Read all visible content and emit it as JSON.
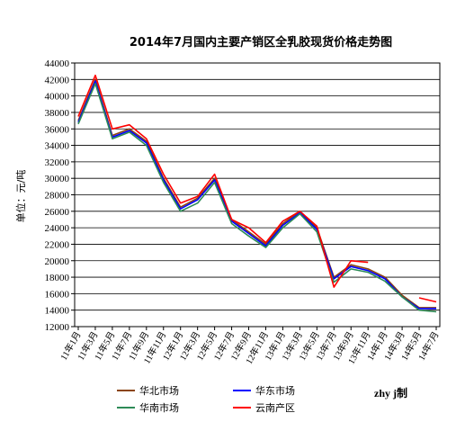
{
  "chart_data": {
    "type": "line",
    "title": "2014年7月国内主要产销区全乳胶现货价格走势图",
    "ylabel": "单位：元/吨",
    "ylim": [
      12000,
      44000
    ],
    "yticks": [
      "12000",
      "14000",
      "16000",
      "18000",
      "20000",
      "22000",
      "24000",
      "26000",
      "28000",
      "30000",
      "32000",
      "34000",
      "36000",
      "38000",
      "40000",
      "42000",
      "44000"
    ],
    "categories": [
      "11年1月",
      "11年3月",
      "11年5月",
      "11年7月",
      "11年9月",
      "11年11月",
      "12年1月",
      "12年3月",
      "12年5月",
      "12年7月",
      "12年9月",
      "12年11月",
      "13年1月",
      "13年3月",
      "13年5月",
      "13年7月",
      "13年9月",
      "13年11月",
      "14年1月",
      "14年3月",
      "14年5月",
      "14年7月"
    ],
    "grid": true,
    "legend_position": "bottom",
    "credit": "zhy j制",
    "series": [
      {
        "name": "华北市场",
        "color": "#8B4513",
        "values": [
          37000,
          42000,
          35200,
          36000,
          34500,
          30000,
          26500,
          27600,
          30000,
          25000,
          23500,
          22000,
          24500,
          26000,
          24000,
          18000,
          19500,
          19000,
          18000,
          15800,
          14300,
          14300
        ]
      },
      {
        "name": "华东市场",
        "color": "#0000FF",
        "values": [
          36800,
          41800,
          35000,
          35800,
          34300,
          29800,
          26300,
          27400,
          29800,
          24800,
          23300,
          21800,
          24300,
          25800,
          23800,
          17800,
          19300,
          18800,
          17800,
          15600,
          14200,
          14200
        ]
      },
      {
        "name": "华南市场",
        "color": "#2E8B57",
        "values": [
          36600,
          41500,
          34800,
          35600,
          34000,
          29500,
          26000,
          27000,
          29500,
          24500,
          23000,
          21600,
          24000,
          25700,
          23500,
          17400,
          19000,
          18600,
          17500,
          15600,
          14000,
          13800
        ]
      },
      {
        "name": "云南产区",
        "color": "#FF0000",
        "values": [
          37500,
          42500,
          36000,
          36500,
          34800,
          30500,
          27000,
          27800,
          30500,
          25000,
          24000,
          22200,
          24800,
          26000,
          24200,
          16800,
          20000,
          19800,
          null,
          null,
          15500,
          15000
        ]
      }
    ]
  }
}
